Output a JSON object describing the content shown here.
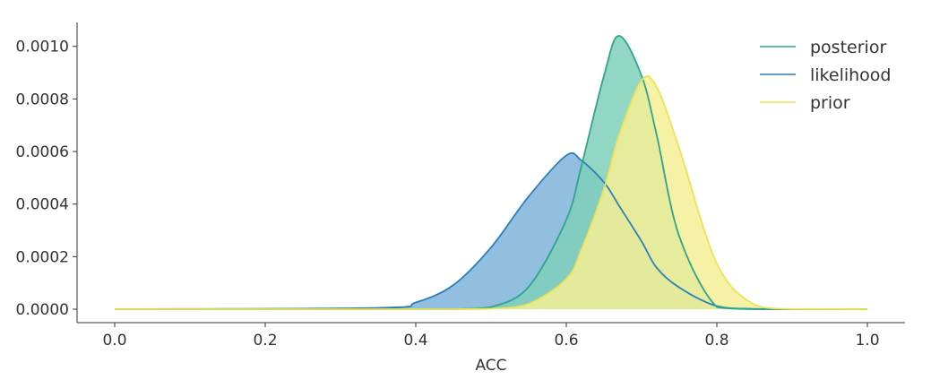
{
  "chart_data": {
    "type": "area",
    "xlabel": "ACC",
    "ylabel": "",
    "xlim": [
      0.0,
      1.0
    ],
    "ylim": [
      0.0,
      0.00104
    ],
    "x_ticks": [
      0.0,
      0.2,
      0.4,
      0.6,
      0.8,
      1.0
    ],
    "x_tick_labels": [
      "0.0",
      "0.2",
      "0.4",
      "0.6",
      "0.8",
      "1.0"
    ],
    "y_ticks": [
      0.0,
      0.0002,
      0.0004,
      0.0006,
      0.0008,
      0.001
    ],
    "y_tick_labels": [
      "0.0000",
      "0.0002",
      "0.0004",
      "0.0006",
      "0.0008",
      "0.0010"
    ],
    "grid": false,
    "legend_position": "top-right",
    "x": [
      0.0,
      0.35,
      0.4,
      0.45,
      0.5,
      0.55,
      0.6,
      0.62,
      0.65,
      0.67,
      0.7,
      0.72,
      0.75,
      0.8,
      0.85,
      0.9,
      1.0
    ],
    "series": [
      {
        "name": "posterior",
        "color": "#2ca58d",
        "fill_color": "#7fd0b8",
        "values": [
          0.0,
          0.0,
          0.0,
          2e-07,
          8.2e-06,
          8.53e-05,
          0.00034,
          0.000544,
          0.000888,
          0.00104,
          0.000888,
          0.000664,
          0.000278,
          8.2e-06,
          0.0,
          0.0,
          0.0
        ]
      },
      {
        "name": "likelihood",
        "color": "#2b7fb8",
        "fill_color": "#7fb3da",
        "values": [
          0.0,
          5.1e-06,
          2.57e-05,
          9.2e-05,
          0.000235,
          0.000429,
          0.000585,
          0.000566,
          0.000483,
          0.000394,
          0.000258,
          0.000158,
          8.27e-05,
          1.2e-05,
          1e-06,
          0.0,
          0.0
        ]
      },
      {
        "name": "prior",
        "color": "#eee256",
        "fill_color": "#f6ef95",
        "values": [
          0.0,
          0.0,
          0.0,
          0.0,
          1.9e-06,
          2.04e-05,
          0.000115,
          0.000227,
          0.000457,
          0.000661,
          0.00087,
          0.000845,
          0.000612,
          0.000173,
          1.68e-05,
          6e-07,
          0.0
        ]
      }
    ],
    "overlap_color": "#3ea893"
  }
}
